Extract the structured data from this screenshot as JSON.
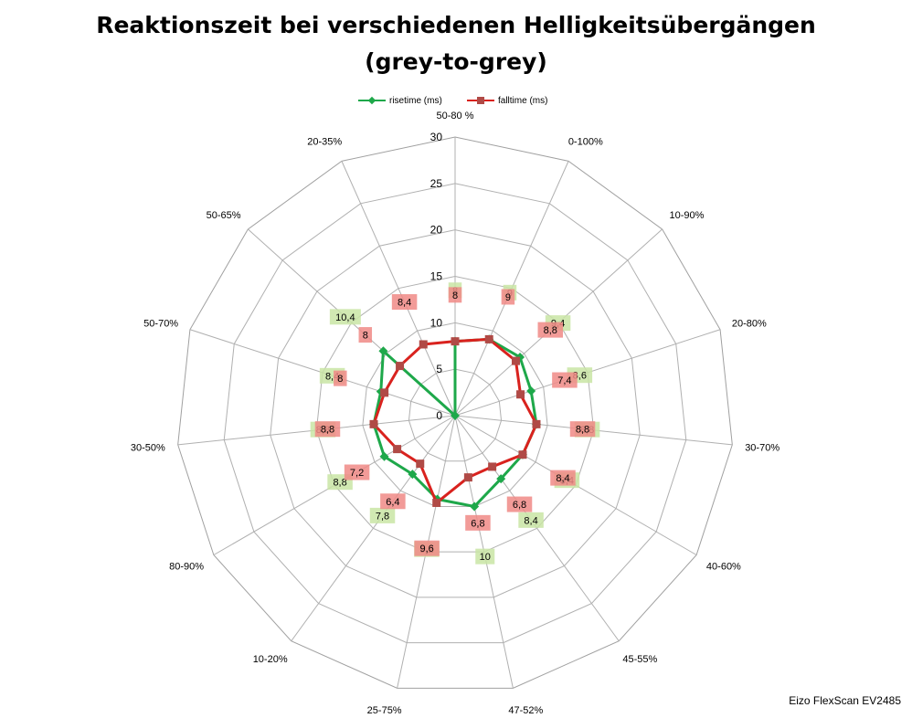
{
  "chart_data": {
    "type": "radar",
    "title_line1": "Reaktionszeit bei verschiedenen Helligkeitsübergängen",
    "title_line2": "(grey-to-grey)",
    "categories": [
      "50-80 %",
      "0-100%",
      "10-90%",
      "20-80%",
      "30-70%",
      "40-60%",
      "45-55%",
      "47-52%",
      "25-75%",
      "10-20%",
      "80-90%",
      "30-50%",
      "50-70%",
      "50-65%",
      "20-35%"
    ],
    "radial_ticks": [
      0,
      5,
      10,
      15,
      20,
      25,
      30
    ],
    "rmax": 30,
    "series": [
      {
        "name": "risetime (ms)",
        "color": "#1ea84a",
        "label_bg": "#c9e5a5",
        "marker": "diamond",
        "values": [
          8,
          9,
          9.4,
          8.6,
          8.8,
          8.4,
          8.4,
          10,
          9.2,
          7.8,
          8.8,
          8.8,
          8.4,
          10.4,
          0
        ],
        "labels": [
          "8",
          "9",
          "9,4",
          "8,6",
          "8,8",
          "8,4",
          "8,4",
          "10",
          "9,2",
          "7,8",
          "8,8",
          "8,8",
          "8,4",
          "10,4",
          ""
        ]
      },
      {
        "name": "falltime (ms)",
        "color": "#d9221e",
        "label_bg": "#f08a86",
        "marker": "square",
        "values": [
          8,
          9,
          8.8,
          7.4,
          8.8,
          8.4,
          6.8,
          6.8,
          9.6,
          6.4,
          7.2,
          8.8,
          8,
          8,
          8.4
        ],
        "labels": [
          "8",
          "9",
          "8,8",
          "7,4",
          "8,8",
          "8,4",
          "6,8",
          "6,8",
          "9,6",
          "6,4",
          "7,2",
          "8,8",
          "8",
          "8",
          "8,4"
        ]
      }
    ],
    "grid": true,
    "legend_position": "top"
  },
  "footer": "Eizo FlexScan EV2485"
}
